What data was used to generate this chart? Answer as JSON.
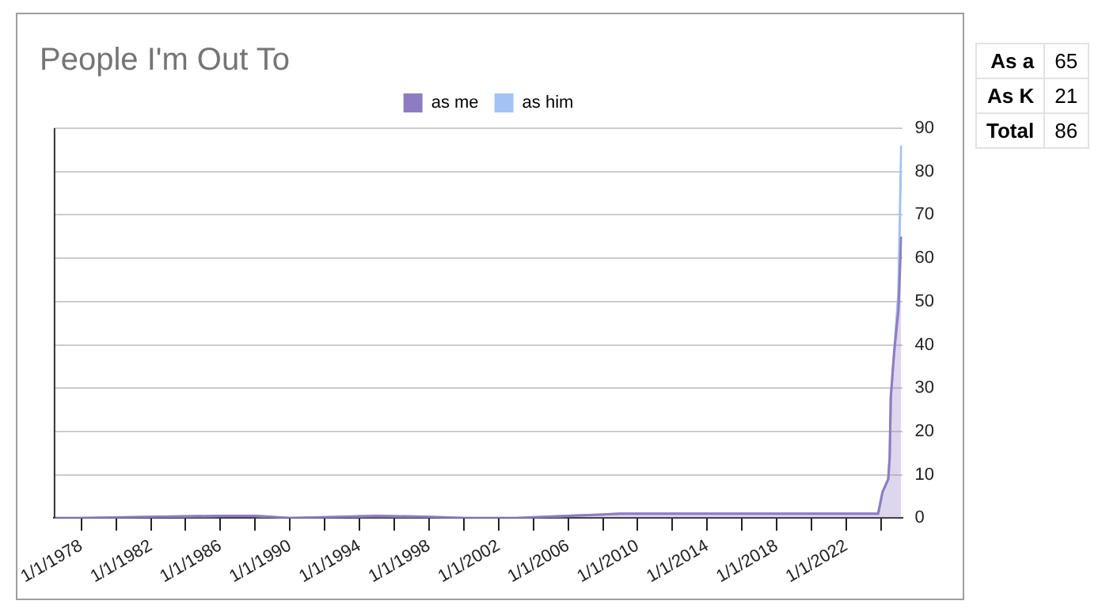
{
  "chart_data": {
    "type": "area",
    "title": "People I'm Out To",
    "stacked": true,
    "legend": "top",
    "grid": "y",
    "x": [
      "1976-06-01",
      "1978-01-01",
      "1982-01-01",
      "1986-01-01",
      "1988-01-01",
      "1990-01-01",
      "1992-01-01",
      "1995-01-01",
      "1998-01-01",
      "2000-01-01",
      "2003-01-01",
      "2006-01-01",
      "2009-01-01",
      "2023-11-01",
      "2024-02-01",
      "2024-06-01",
      "2024-07-01",
      "2024-07-25",
      "2024-10-01",
      "2025-01-01",
      "2025-03-01"
    ],
    "series": [
      {
        "name": "as me",
        "color": "#8e7cc3",
        "values": [
          0,
          0,
          0.3,
          0.5,
          0.5,
          0,
          0.2,
          0.5,
          0.3,
          0,
          0,
          0.5,
          1,
          1,
          6,
          9,
          14,
          28,
          38,
          48,
          65
        ]
      },
      {
        "name": "as him",
        "color": "#a4c2f4",
        "values": [
          0,
          0,
          0,
          0,
          0,
          0,
          0,
          0,
          0,
          0,
          0,
          0,
          0,
          0,
          0,
          0,
          0,
          0,
          0,
          4,
          21
        ]
      }
    ],
    "xlim": [
      "1976-06-01",
      "2025-03-20"
    ],
    "xticks": [
      {
        "value": "1978-01-01",
        "label": "1/1/1978"
      },
      {
        "value": "1980-01-01",
        "label": null
      },
      {
        "value": "1982-01-01",
        "label": "1/1/1982"
      },
      {
        "value": "1984-01-01",
        "label": null
      },
      {
        "value": "1986-01-01",
        "label": "1/1/1986"
      },
      {
        "value": "1988-01-01",
        "label": null
      },
      {
        "value": "1990-01-01",
        "label": "1/1/1990"
      },
      {
        "value": "1992-01-01",
        "label": null
      },
      {
        "value": "1994-01-01",
        "label": "1/1/1994"
      },
      {
        "value": "1996-01-01",
        "label": null
      },
      {
        "value": "1998-01-01",
        "label": "1/1/1998"
      },
      {
        "value": "2000-01-01",
        "label": null
      },
      {
        "value": "2002-01-01",
        "label": "1/1/2002"
      },
      {
        "value": "2004-01-01",
        "label": null
      },
      {
        "value": "2006-01-01",
        "label": "1/1/2006"
      },
      {
        "value": "2008-01-01",
        "label": null
      },
      {
        "value": "2010-01-01",
        "label": "1/1/2010"
      },
      {
        "value": "2012-01-01",
        "label": null
      },
      {
        "value": "2014-01-01",
        "label": "1/1/2014"
      },
      {
        "value": "2016-01-01",
        "label": null
      },
      {
        "value": "2018-01-01",
        "label": "1/1/2018"
      },
      {
        "value": "2020-01-01",
        "label": null
      },
      {
        "value": "2022-01-01",
        "label": "1/1/2022"
      },
      {
        "value": "2024-01-01",
        "label": null
      }
    ],
    "ylim": [
      0,
      90
    ],
    "yticks": [
      0,
      10,
      20,
      30,
      40,
      50,
      60,
      70,
      80,
      90
    ],
    "annotations": [
      "As a",
      "65",
      "As K",
      "21",
      "Total",
      "86"
    ]
  }
}
